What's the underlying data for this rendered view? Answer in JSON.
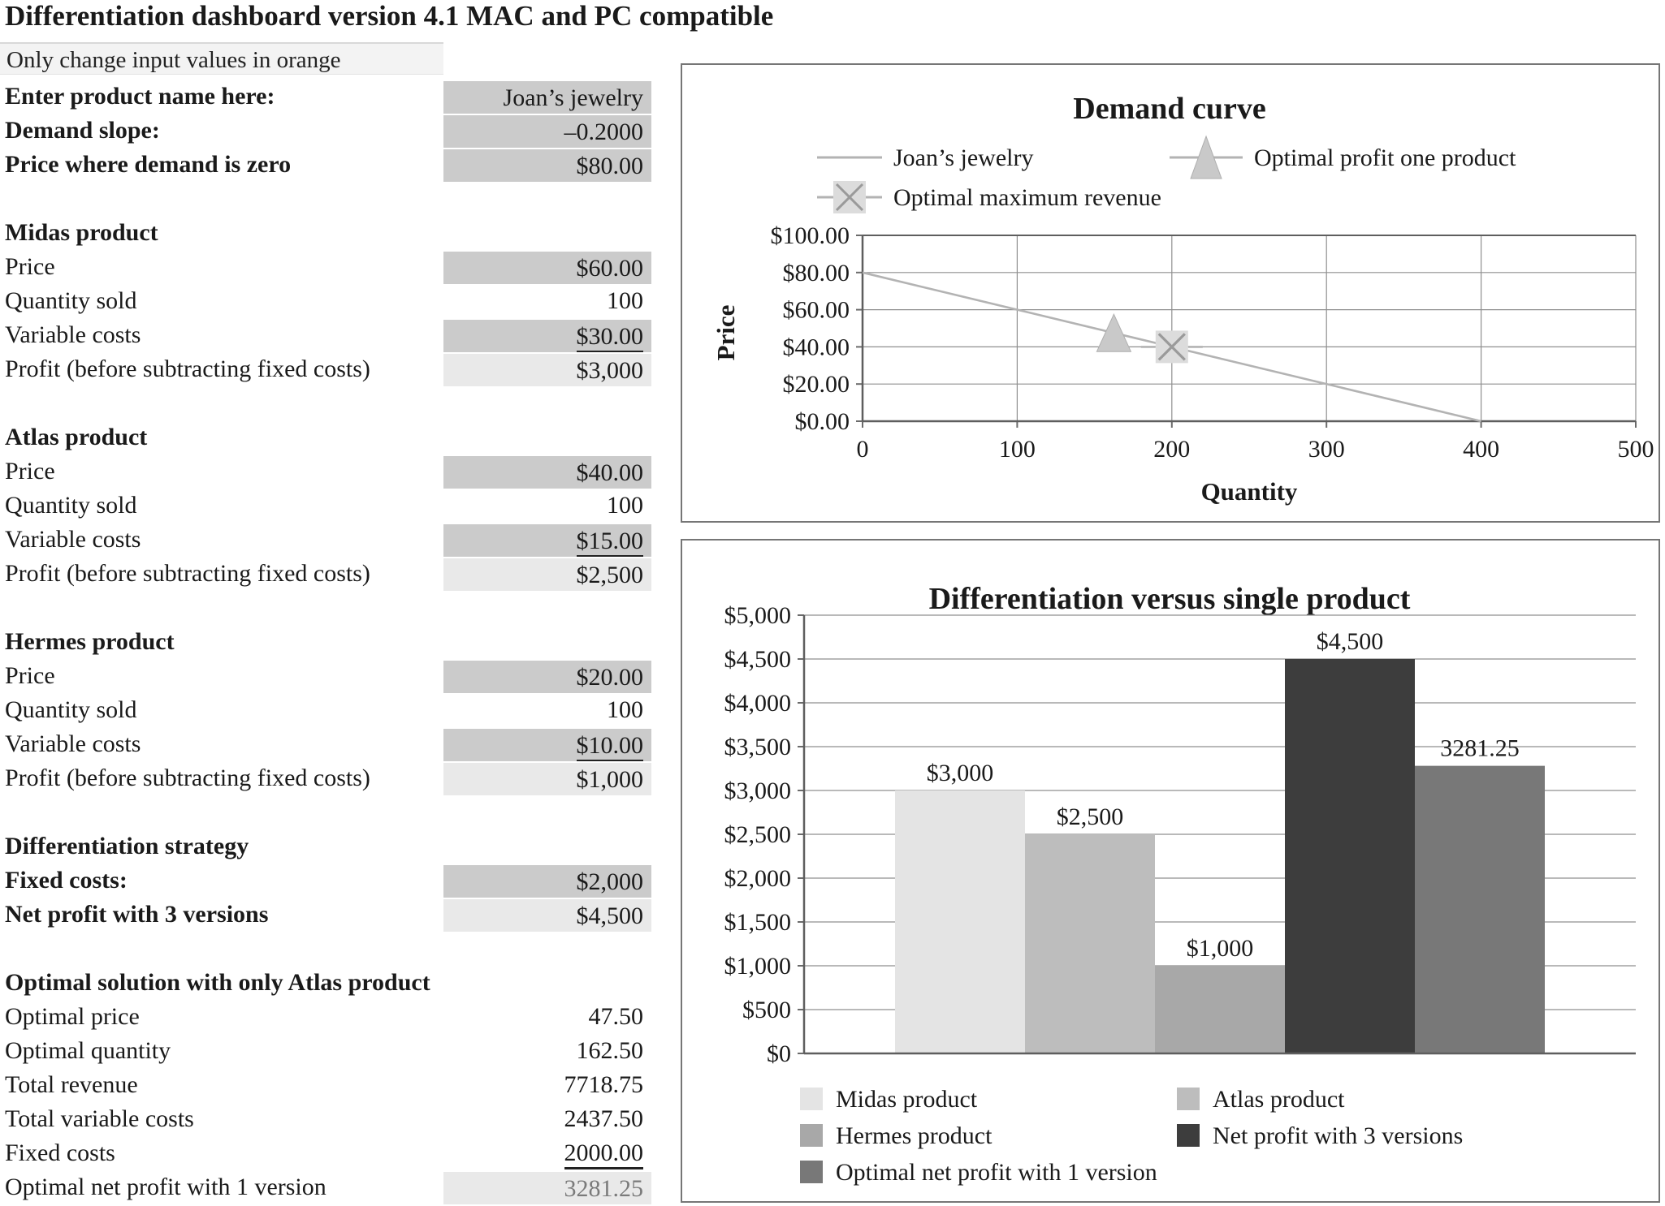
{
  "page": {
    "title": "Differentiation dashboard version 4.1 MAC and PC compatible",
    "note": "Only change input values in orange"
  },
  "colors": {
    "input_cell": "#cbcbcb",
    "output_cell": "#e9e9e9",
    "chart_border": "#767676",
    "grid": "#8f8f8f",
    "demand_line": "#b3b3b3",
    "triangle_marker": "#c9c9c9",
    "x_marker_box": "#dcdcdc",
    "x_marker_stroke": "#9a9a9a"
  },
  "left_rows": [
    {
      "label": "Enter product name here:",
      "value": "Joan’s jewelry",
      "cell": "input",
      "bold": true
    },
    {
      "label": "Demand slope:",
      "value": "–0.2000",
      "cell": "input",
      "bold": true
    },
    {
      "label": "Price where demand is zero",
      "value": "$80.00",
      "cell": "input",
      "bold": true
    },
    {
      "label": "Midas product",
      "header": true
    },
    {
      "label": "Price",
      "value": "$60.00",
      "cell": "input"
    },
    {
      "label": "Quantity sold",
      "value": "100"
    },
    {
      "label": "Variable costs",
      "value": "$30.00",
      "cell": "input",
      "underline": true
    },
    {
      "label": "Profit (before subtracting fixed costs)",
      "value": "$3,000",
      "cell": "output"
    },
    {
      "label": "Atlas product",
      "header": true
    },
    {
      "label": "Price",
      "value": "$40.00",
      "cell": "input"
    },
    {
      "label": "Quantity sold",
      "value": "100"
    },
    {
      "label": "Variable costs",
      "value": "$15.00",
      "cell": "input",
      "underline": true
    },
    {
      "label": "Profit (before subtracting fixed costs)",
      "value": "$2,500",
      "cell": "output"
    },
    {
      "label": "Hermes product",
      "header": true
    },
    {
      "label": "Price",
      "value": "$20.00",
      "cell": "input"
    },
    {
      "label": "Quantity sold",
      "value": "100"
    },
    {
      "label": "Variable costs",
      "value": "$10.00",
      "cell": "input",
      "underline": true
    },
    {
      "label": "Profit (before subtracting fixed costs)",
      "value": "$1,000",
      "cell": "output"
    },
    {
      "label": "Differentiation strategy",
      "header": true
    },
    {
      "label": "Fixed costs:",
      "value": "$2,000",
      "cell": "input",
      "bold": true
    },
    {
      "label": "Net profit with 3 versions",
      "value": "$4,500",
      "cell": "output",
      "bold": true
    },
    {
      "label": "Optimal solution with only Atlas product",
      "header": true
    },
    {
      "label": "Optimal price",
      "value": "47.50"
    },
    {
      "label": "Optimal quantity",
      "value": "162.50"
    },
    {
      "label": "Total revenue",
      "value": "7718.75"
    },
    {
      "label": "Total variable costs",
      "value": "2437.50"
    },
    {
      "label": "Fixed costs",
      "value": "2000.00",
      "underline": true
    },
    {
      "label": "Optimal net profit with 1 version",
      "value": "3281.25",
      "cell": "output",
      "muted": true
    }
  ],
  "chart_data": [
    {
      "type": "line",
      "title": "Demand curve",
      "xlabel": "Quantity",
      "ylabel": "Price",
      "x_axis": {
        "title": "Quantity",
        "max": 500,
        "values": [
          0,
          100,
          200,
          300,
          400,
          500
        ],
        "ticks": [
          "0",
          "100",
          "200",
          "300",
          "400",
          "500"
        ]
      },
      "y_axis": {
        "title": "Price",
        "max": 100,
        "values": [
          0,
          20,
          40,
          60,
          80,
          100
        ],
        "ticks": [
          "$0.00",
          "$20.00",
          "$40.00",
          "$60.00",
          "$80.00",
          "$100.00"
        ]
      },
      "grid": true,
      "legend_position": "top",
      "series": [
        {
          "name": "Joan’s jewelry",
          "kind": "line",
          "marker": "none",
          "color": "#b3b3b3",
          "points": [
            [
              0,
              80
            ],
            [
              400,
              0
            ]
          ]
        },
        {
          "name": "Optimal profit one product",
          "kind": "point",
          "marker": "triangle",
          "color": "#c9c9c9",
          "points": [
            [
              162.5,
              47.5
            ]
          ]
        },
        {
          "name": "Optimal maximum revenue",
          "kind": "point",
          "marker": "x-square",
          "color": "#dcdcdc",
          "points": [
            [
              200,
              40
            ]
          ]
        }
      ]
    },
    {
      "type": "bar",
      "title": "Differentiation versus single product",
      "xlabel": "",
      "ylabel": "",
      "categories": [
        "Midas product",
        "Atlas product",
        "Hermes product",
        "Net profit with 3 versions",
        "Optimal net profit with 1 version"
      ],
      "values": [
        3000,
        2500,
        1000,
        4500,
        3281.25
      ],
      "value_labels": [
        "$3,000",
        "$2,500",
        "$1,000",
        "$4,500",
        "3281.25"
      ],
      "colors": [
        "#e4e4e4",
        "#bdbdbd",
        "#a8a8a8",
        "#3d3d3d",
        "#787878"
      ],
      "ylim": [
        0,
        5000
      ],
      "grid": true,
      "legend_position": "bottom",
      "y_axis": {
        "max": 5000,
        "values": [
          0,
          500,
          1000,
          1500,
          2000,
          2500,
          3000,
          3500,
          4000,
          4500,
          5000
        ],
        "ticks": [
          "$0",
          "$500",
          "$1,000",
          "$1,500",
          "$2,000",
          "$2,500",
          "$3,000",
          "$3,500",
          "$4,000",
          "$4,500",
          "$5,000"
        ]
      }
    }
  ]
}
